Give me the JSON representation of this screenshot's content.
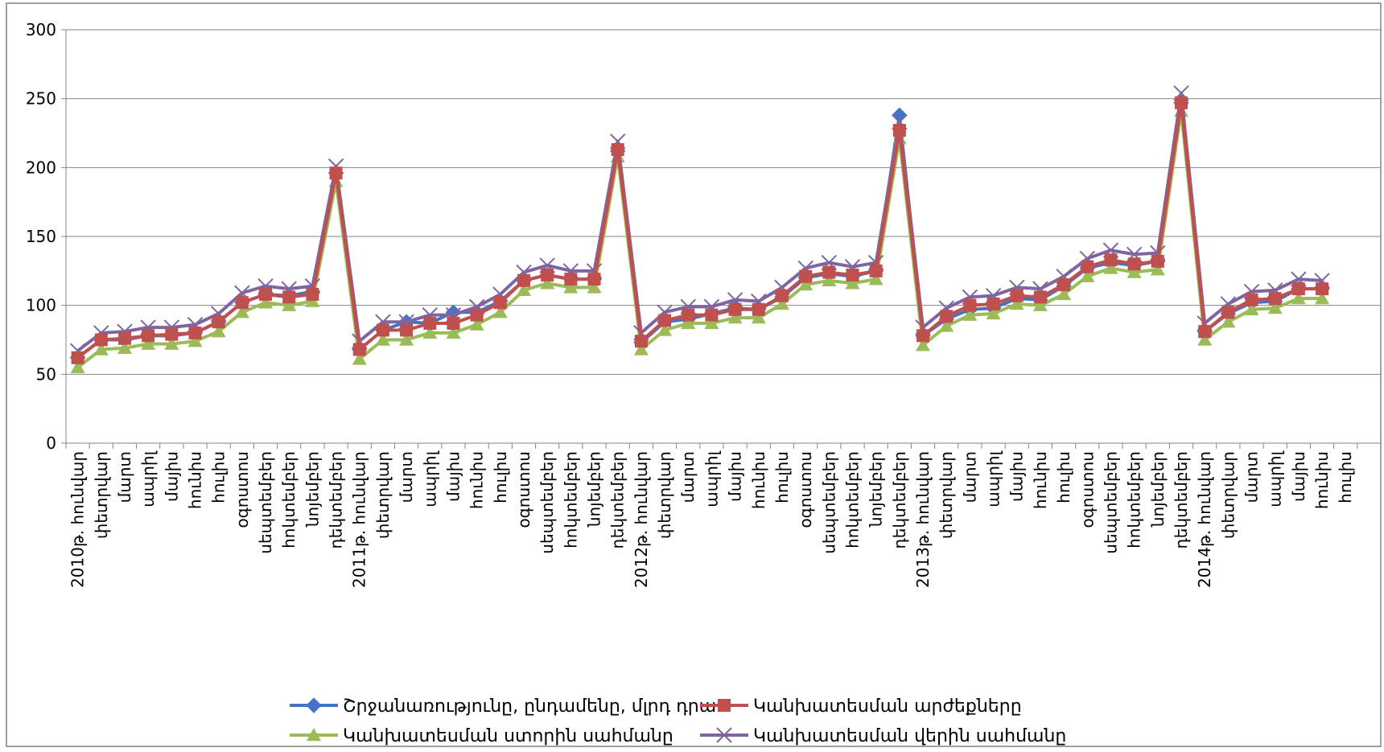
{
  "chart_data": {
    "type": "line",
    "title": "",
    "xlabel": "",
    "ylabel": "",
    "ylim": [
      0,
      300
    ],
    "yticks": [
      0,
      50,
      100,
      150,
      200,
      250,
      300
    ],
    "grid": "horizontal",
    "legend_position": "bottom",
    "categories": [
      "2010թ. հունվար",
      "փետրվար",
      "մարտ",
      "ապրիլ",
      "մայիս",
      "հունիս",
      "հուլիս",
      "օգոստոս",
      "սեպտեմբեր",
      "հոկտեմբեր",
      "նոյեմբեր",
      "դեկտեմբեր",
      "2011թ. հունվար",
      "փետրվար",
      "մարտ",
      "ապրիլ",
      "մայիս",
      "հունիս",
      "հուլիս",
      "օգոստոս",
      "սեպտեմբեր",
      "հոկտեմբեր",
      "նոյեմբեր",
      "դեկտեմբեր",
      "2012թ. հունվար",
      "փետրվար",
      "մարտ",
      "ապրիլ",
      "մայիս",
      "հունիս",
      "հուլիս",
      "օգոստոս",
      "սեպտեմբեր",
      "հոկտեմբեր",
      "նոյեմբեր",
      "դեկտեմբեր",
      "2013թ. հունվար",
      "փետրվար",
      "մարտ",
      "ապրիլ",
      "մայիս",
      "հունիս",
      "հուլիս",
      "օգոստոս",
      "սեպտեմբեր",
      "հոկտեմբեր",
      "նոյեմբեր",
      "դեկտեմբեր",
      "2014թ. հունվար",
      "փետրվար",
      "մարտ",
      "ապրիլ",
      "մայիս",
      "հունիս",
      "հուլիս"
    ],
    "series": [
      {
        "name": "Շրջանառությունը, ընդամենը, մլրդ դրա",
        "color": "#4472C4",
        "marker": "diamond",
        "values": [
          62,
          75,
          75,
          78,
          78,
          80,
          88,
          102,
          108,
          107,
          110,
          196,
          68,
          82,
          88,
          87,
          95,
          95,
          103,
          118,
          122,
          119,
          119,
          212,
          73,
          88,
          90,
          94,
          98,
          97,
          106,
          120,
          123,
          121,
          125,
          238,
          78,
          90,
          97,
          98,
          105,
          104,
          114,
          127,
          131,
          129,
          132,
          247,
          81,
          94,
          102,
          103,
          112,
          112,
          null
        ]
      },
      {
        "name": "Կանխատեսման արժեքները",
        "color": "#C0504D",
        "marker": "square",
        "values": [
          62,
          75,
          76,
          78,
          79,
          80,
          88,
          102,
          108,
          106,
          108,
          196,
          68,
          82,
          82,
          87,
          87,
          93,
          102,
          118,
          122,
          119,
          119,
          213,
          74,
          89,
          93,
          93,
          97,
          97,
          107,
          121,
          124,
          122,
          125,
          227,
          78,
          92,
          100,
          101,
          107,
          106,
          115,
          128,
          133,
          130,
          132,
          247,
          81,
          95,
          104,
          105,
          112,
          112,
          null
        ]
      },
      {
        "name": "Կանխատեսման ստորին սահմանը",
        "color": "#9BBB59",
        "marker": "triangle",
        "values": [
          55,
          68,
          69,
          72,
          72,
          74,
          81,
          95,
          102,
          100,
          103,
          190,
          61,
          75,
          75,
          80,
          80,
          86,
          95,
          111,
          116,
          113,
          113,
          208,
          68,
          82,
          87,
          87,
          91,
          91,
          101,
          115,
          118,
          116,
          119,
          221,
          71,
          85,
          93,
          94,
          101,
          100,
          108,
          121,
          127,
          124,
          126,
          241,
          75,
          88,
          97,
          98,
          105,
          105,
          null
        ]
      },
      {
        "name": "Կանխատեսման վերին սահմանը",
        "color": "#8064A2",
        "marker": "x",
        "values": [
          67,
          80,
          81,
          84,
          84,
          86,
          94,
          109,
          114,
          112,
          114,
          201,
          74,
          88,
          88,
          93,
          93,
          99,
          108,
          124,
          129,
          125,
          125,
          219,
          80,
          95,
          99,
          99,
          104,
          103,
          113,
          127,
          131,
          128,
          131,
          233,
          84,
          98,
          106,
          107,
          113,
          112,
          121,
          134,
          140,
          137,
          138,
          254,
          87,
          101,
          110,
          111,
          119,
          118,
          null
        ]
      }
    ]
  }
}
